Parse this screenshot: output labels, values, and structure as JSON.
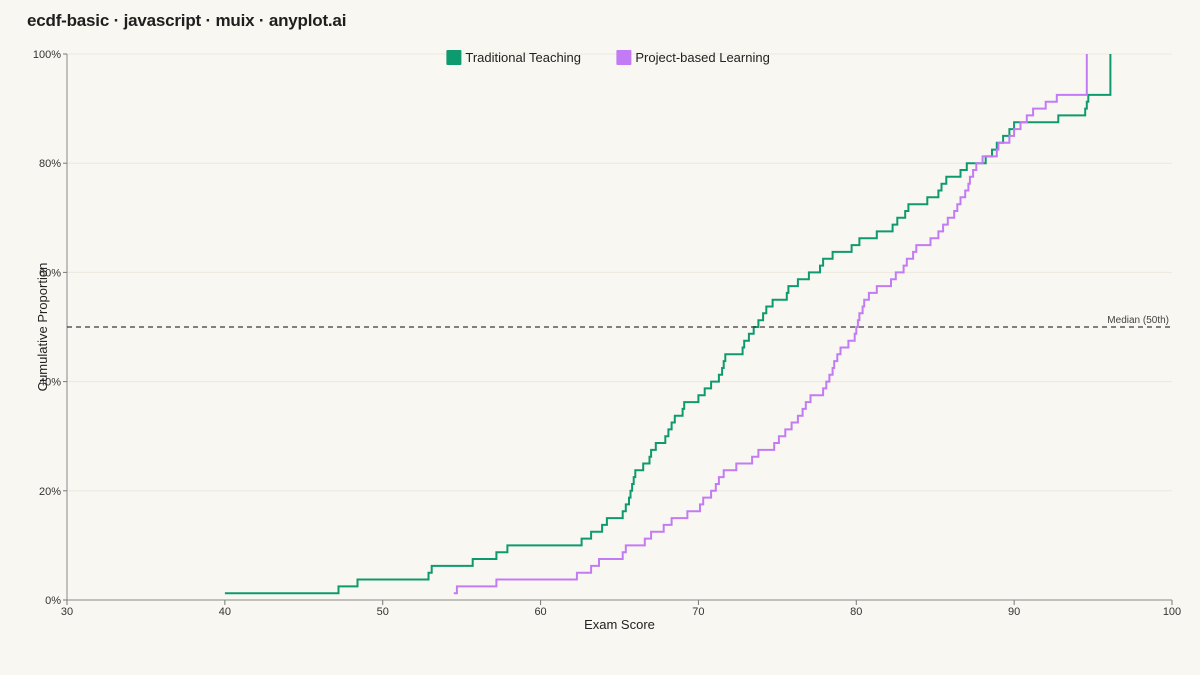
{
  "title": "ecdf-basic · javascript · muix · anyplot.ai",
  "chart_data": {
    "type": "line",
    "step": true,
    "xlabel": "Exam Score",
    "ylabel": "Cumulative Proportion",
    "xlim": [
      30,
      100
    ],
    "ylim": [
      0,
      1
    ],
    "xticks": [
      "30",
      "40",
      "50",
      "60",
      "70",
      "80",
      "90",
      "100"
    ],
    "yticks": [
      "0%",
      "20%",
      "40%",
      "60%",
      "80%",
      "100%"
    ],
    "grid": "horizontal",
    "legend_position": "top",
    "reference_line": {
      "y": 0.5,
      "label": "Median (50th)",
      "style": "dashed"
    },
    "series": [
      {
        "name": "Traditional Teaching",
        "color": "#0e9a6f",
        "x": [
          40.0,
          47.2,
          48.4,
          52.9,
          53.1,
          55.7,
          57.2,
          57.9,
          62.6,
          63.2,
          63.9,
          64.2,
          65.2,
          65.4,
          65.6,
          65.7,
          65.8,
          65.9,
          66.0,
          66.5,
          66.9,
          67.0,
          67.3,
          67.9,
          68.1,
          68.3,
          68.5,
          69.0,
          69.1,
          70.0,
          70.4,
          70.8,
          71.3,
          71.5,
          71.6,
          71.7,
          72.8,
          72.9,
          73.2,
          73.5,
          73.8,
          74.1,
          74.3,
          74.7,
          75.6,
          75.7,
          76.3,
          77.0,
          77.7,
          77.9,
          78.5,
          79.7,
          80.2,
          81.3,
          82.3,
          82.6,
          83.1,
          83.3,
          84.5,
          85.2,
          85.4,
          85.7,
          86.6,
          87.0,
          88.2,
          88.6,
          88.9,
          89.3,
          89.7,
          90.0,
          92.8,
          94.5,
          94.6,
          94.7,
          96.1
        ],
        "y": [
          0.0125,
          0.025,
          0.0375,
          0.05,
          0.0625,
          0.075,
          0.0875,
          0.1,
          0.1125,
          0.125,
          0.1375,
          0.15,
          0.1625,
          0.175,
          0.1875,
          0.2,
          0.2125,
          0.225,
          0.2375,
          0.25,
          0.2625,
          0.275,
          0.2875,
          0.3,
          0.3125,
          0.325,
          0.3375,
          0.35,
          0.3625,
          0.375,
          0.3875,
          0.4,
          0.4125,
          0.425,
          0.4375,
          0.45,
          0.4625,
          0.475,
          0.4875,
          0.5,
          0.5125,
          0.525,
          0.5375,
          0.55,
          0.5625,
          0.575,
          0.5875,
          0.6,
          0.6125,
          0.625,
          0.6375,
          0.65,
          0.6625,
          0.675,
          0.6875,
          0.7,
          0.7125,
          0.725,
          0.7375,
          0.75,
          0.7625,
          0.775,
          0.7875,
          0.8,
          0.8125,
          0.825,
          0.8375,
          0.85,
          0.8625,
          0.875,
          0.8875,
          0.9,
          0.9125,
          0.925,
          1.0
        ]
      },
      {
        "name": "Project-based Learning",
        "color": "#c27bf5",
        "x": [
          54.5,
          54.7,
          57.2,
          62.3,
          63.2,
          63.7,
          65.2,
          65.4,
          66.6,
          67.0,
          67.8,
          68.3,
          69.3,
          70.1,
          70.3,
          70.8,
          71.1,
          71.3,
          71.6,
          72.4,
          73.4,
          73.8,
          74.8,
          75.1,
          75.5,
          75.9,
          76.3,
          76.6,
          76.8,
          77.1,
          77.9,
          78.1,
          78.3,
          78.5,
          78.6,
          78.8,
          79.0,
          79.5,
          79.9,
          80.0,
          80.1,
          80.2,
          80.4,
          80.5,
          80.8,
          81.3,
          82.2,
          82.5,
          83.0,
          83.2,
          83.6,
          83.8,
          84.7,
          85.2,
          85.5,
          85.8,
          86.2,
          86.4,
          86.6,
          86.9,
          87.1,
          87.2,
          87.4,
          87.6,
          88.0,
          88.9,
          89.0,
          89.7,
          90.0,
          90.4,
          90.8,
          91.2,
          92.0,
          92.7,
          94.6
        ],
        "y": [
          0.0125,
          0.025,
          0.0375,
          0.05,
          0.0625,
          0.075,
          0.0875,
          0.1,
          0.1125,
          0.125,
          0.1375,
          0.15,
          0.1625,
          0.175,
          0.1875,
          0.2,
          0.2125,
          0.225,
          0.2375,
          0.25,
          0.2625,
          0.275,
          0.2875,
          0.3,
          0.3125,
          0.325,
          0.3375,
          0.35,
          0.3625,
          0.375,
          0.3875,
          0.4,
          0.4125,
          0.425,
          0.4375,
          0.45,
          0.4625,
          0.475,
          0.4875,
          0.5,
          0.5125,
          0.525,
          0.5375,
          0.55,
          0.5625,
          0.575,
          0.5875,
          0.6,
          0.6125,
          0.625,
          0.6375,
          0.65,
          0.6625,
          0.675,
          0.6875,
          0.7,
          0.7125,
          0.725,
          0.7375,
          0.75,
          0.7625,
          0.775,
          0.7875,
          0.8,
          0.8125,
          0.825,
          0.8375,
          0.85,
          0.8625,
          0.875,
          0.8875,
          0.9,
          0.9125,
          0.925,
          1.0
        ]
      }
    ]
  }
}
